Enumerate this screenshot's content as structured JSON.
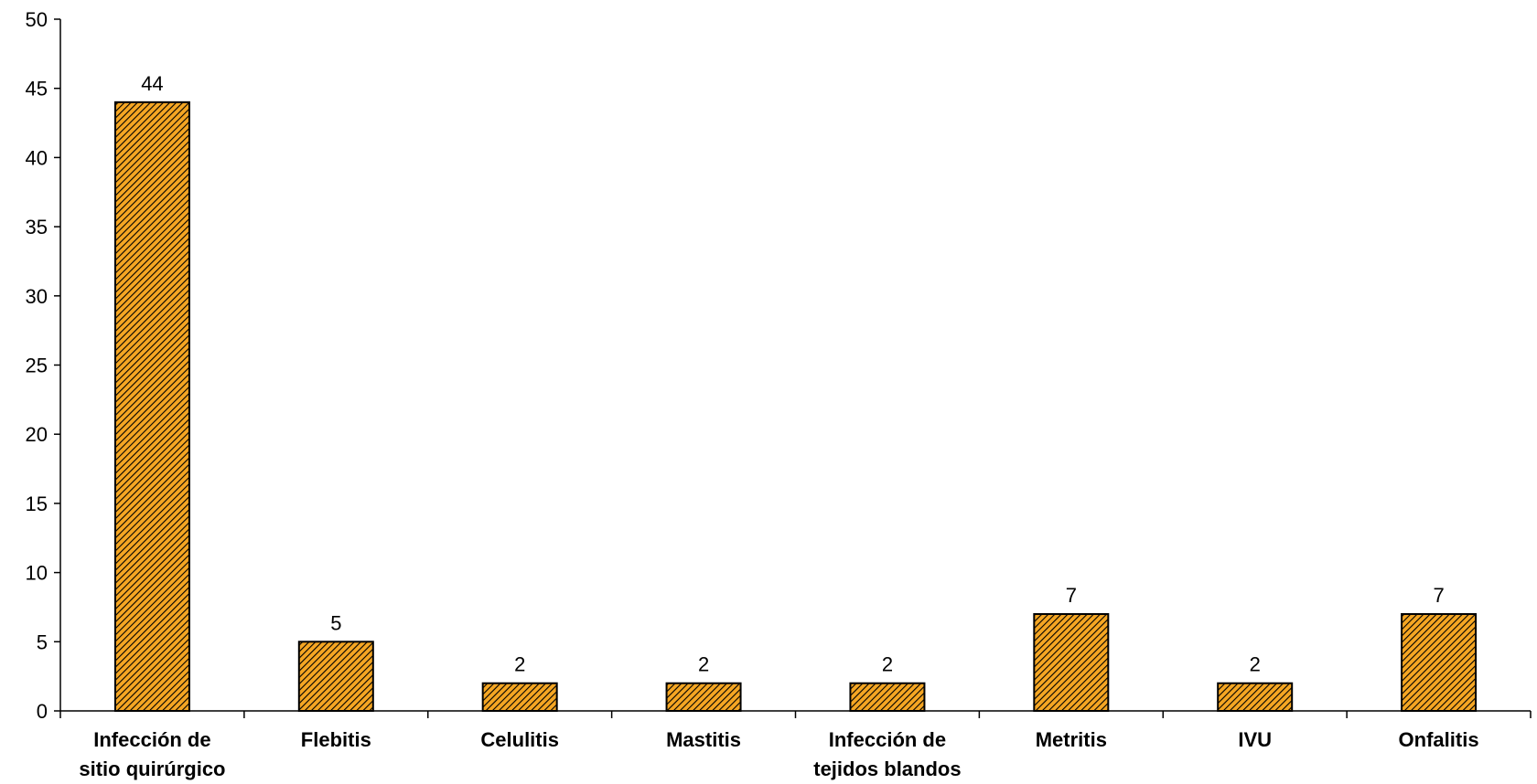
{
  "chart_data": {
    "type": "bar",
    "title": "",
    "xlabel": "",
    "ylabel": "",
    "categories": [
      [
        "Infección de",
        "sitio quirúrgico"
      ],
      [
        "Flebitis"
      ],
      [
        "Celulitis"
      ],
      [
        "Mastitis"
      ],
      [
        "Infección de",
        "tejidos blandos"
      ],
      [
        "Metritis"
      ],
      [
        "IVU"
      ],
      [
        "Onfalitis"
      ]
    ],
    "series": [
      {
        "values": [
          44,
          5,
          2,
          2,
          2,
          7,
          2,
          7
        ]
      }
    ],
    "ylim": [
      0,
      50
    ],
    "yticks": [
      0,
      5,
      10,
      15,
      20,
      25,
      30,
      35,
      40,
      45,
      50
    ],
    "bar_fill": "#F5A623",
    "hatch_color": "#000000",
    "axis_color": "#000000",
    "grid": false,
    "legend": "none"
  }
}
